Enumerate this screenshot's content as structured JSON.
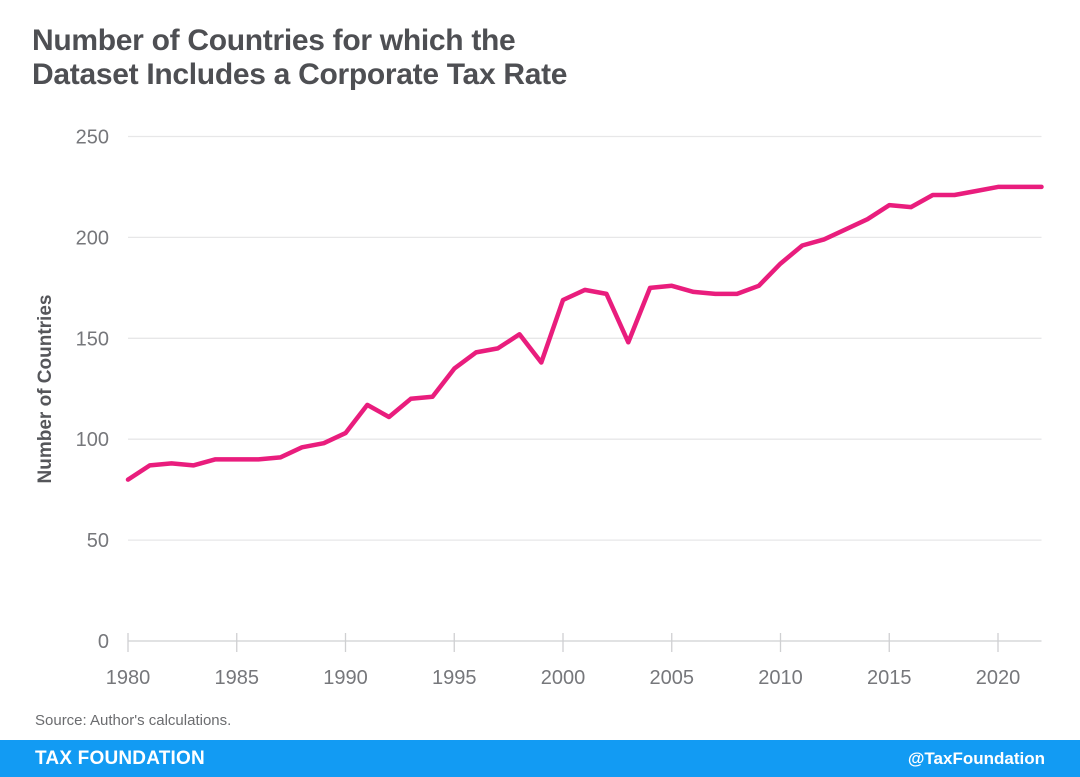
{
  "title_lines": [
    "Number of Countries for which the",
    "Dataset Includes a Corporate Tax Rate"
  ],
  "source": "Source: Author's calculations.",
  "footer": {
    "brand": "TAX FOUNDATION",
    "handle": "@TaxFoundation",
    "bg_color": "#129bf3"
  },
  "colors": {
    "line": "#e91d7d",
    "grid": "#e7e7e8",
    "axis": "#cfd0d2",
    "tick_label": "#76777b",
    "title": "#4e4f53",
    "axis_title": "#55565a",
    "source_text": "#6b6c6f"
  },
  "chart_data": {
    "type": "line",
    "title": "Number of Countries for which the Dataset Includes a Corporate Tax Rate",
    "xlabel": "",
    "ylabel": "Number of Countries",
    "ylim": [
      0,
      250
    ],
    "xlim": [
      1980,
      2022
    ],
    "yticks": [
      0,
      50,
      100,
      150,
      200,
      250
    ],
    "xticks": [
      1980,
      1985,
      1990,
      1995,
      2000,
      2005,
      2010,
      2015,
      2020
    ],
    "grid": "horizontal",
    "legend": "none",
    "x": [
      1980,
      1981,
      1982,
      1983,
      1984,
      1985,
      1986,
      1987,
      1988,
      1989,
      1990,
      1991,
      1992,
      1993,
      1994,
      1995,
      1996,
      1997,
      1998,
      1999,
      2000,
      2001,
      2002,
      2003,
      2004,
      2005,
      2006,
      2007,
      2008,
      2009,
      2010,
      2011,
      2012,
      2013,
      2014,
      2015,
      2016,
      2017,
      2018,
      2019,
      2020,
      2021,
      2022
    ],
    "series": [
      {
        "name": "Number of Countries",
        "color": "#e91d7d",
        "values": [
          80,
          87,
          88,
          87,
          90,
          90,
          90,
          91,
          96,
          98,
          103,
          117,
          111,
          120,
          121,
          135,
          143,
          145,
          152,
          138,
          169,
          174,
          172,
          148,
          175,
          176,
          173,
          172,
          172,
          176,
          187,
          196,
          199,
          204,
          209,
          216,
          215,
          221,
          221,
          223,
          225,
          225,
          225
        ]
      }
    ]
  }
}
